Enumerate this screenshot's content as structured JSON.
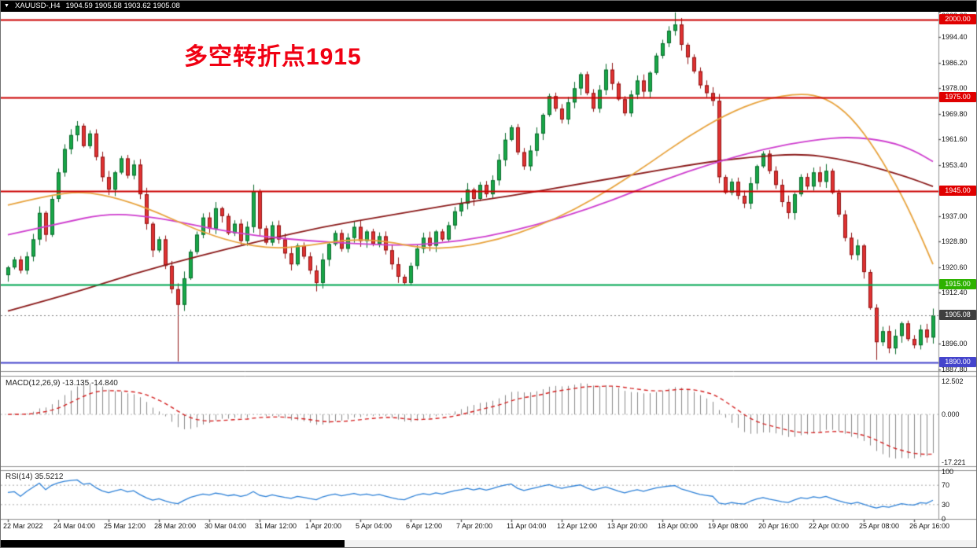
{
  "titlebar": {
    "symbol_period": "XAUUSD-,H4",
    "ohlc": "1904.59 1905.58 1903.62 1905.08",
    "bg": "#000000",
    "fg": "#ffffff"
  },
  "annotation": {
    "text": "多空转折点1915",
    "color": "#f00012"
  },
  "current_price": 1905.08,
  "hlines": [
    {
      "price": 2000.0,
      "color": "#cc0000",
      "width": 2
    },
    {
      "price": 1975.0,
      "color": "#cc0000",
      "width": 2
    },
    {
      "price": 1945.0,
      "color": "#cc0000",
      "width": 2
    },
    {
      "price": 1915.0,
      "color": "#00a651",
      "width": 2
    },
    {
      "price": 1890.0,
      "color": "#4444cc",
      "width": 2
    }
  ],
  "price_axis": {
    "ticks": [
      "2002.60",
      "1994.40",
      "1986.20",
      "1978.00",
      "1969.80",
      "1961.60",
      "1953.40",
      "1937.00",
      "1928.80",
      "1920.60",
      "1912.40",
      "1896.00",
      "1887.80"
    ],
    "badges": [
      {
        "text": "2000.00",
        "price": 2000.0,
        "bg": "#e00000"
      },
      {
        "text": "1975.00",
        "price": 1975.0,
        "bg": "#e00000"
      },
      {
        "text": "1945.00",
        "price": 1945.0,
        "bg": "#e00000"
      },
      {
        "text": "1915.00",
        "price": 1915.0,
        "bg": "#2db200"
      },
      {
        "text": "1890.00",
        "price": 1890.0,
        "bg": "#4444cc"
      }
    ],
    "current": {
      "text": "1905.08",
      "price": 1905.08,
      "bg": "#3f3f3f"
    }
  },
  "indicators": {
    "macd": {
      "label": "MACD(12,26,9)",
      "values_text": "-13.135 -14.840",
      "axis": [
        {
          "text": "12.502",
          "value": 12.502
        },
        {
          "text": "0.000",
          "value": 0.0
        },
        {
          "text": "-17.221",
          "value": -17.221
        }
      ],
      "histogram_color": "#8a8a8a",
      "signal_color": "#d42020"
    },
    "rsi": {
      "label": "RSI(14)",
      "value_text": "35.5212",
      "axis": [
        "100",
        "70",
        "30",
        "0"
      ],
      "levels": [
        70,
        30
      ],
      "line_color": "#2f82d8"
    }
  },
  "chart_data": {
    "type": "candlestick",
    "title": "XAUUSD-,H4",
    "ylim": [
      1887.8,
      2002.6
    ],
    "x_labels": [
      "22 Mar 2022",
      "24 Mar 04:00",
      "25 Mar 12:00",
      "28 Mar 20:00",
      "30 Mar 04:00",
      "31 Mar 12:00",
      "1 Apr 20:00",
      "5 Apr 04:00",
      "6 Apr 12:00",
      "7 Apr 20:00",
      "11 Apr 04:00",
      "12 Apr 12:00",
      "13 Apr 20:00",
      "18 Apr 00:00",
      "19 Apr 08:00",
      "20 Apr 16:00",
      "22 Apr 00:00",
      "25 Apr 08:00",
      "26 Apr 16:00"
    ],
    "open_first": 1918.0,
    "closes": [
      1920.5,
      1923.0,
      1919.5,
      1924.0,
      1929.5,
      1938.0,
      1931.0,
      1942.5,
      1951.0,
      1958.5,
      1963.0,
      1966.0,
      1959.5,
      1963.5,
      1956.0,
      1949.5,
      1945.5,
      1951.0,
      1955.5,
      1950.0,
      1953.5,
      1944.0,
      1934.5,
      1926.0,
      1929.5,
      1921.0,
      1913.5,
      1908.5,
      1917.0,
      1925.5,
      1931.0,
      1936.5,
      1933.0,
      1939.5,
      1937.0,
      1931.5,
      1934.5,
      1929.0,
      1933.5,
      1945.0,
      1933.0,
      1928.5,
      1934.0,
      1929.5,
      1925.0,
      1921.5,
      1927.5,
      1924.0,
      1919.5,
      1915.5,
      1923.0,
      1928.0,
      1931.5,
      1926.5,
      1930.0,
      1933.5,
      1929.0,
      1932.0,
      1928.0,
      1930.5,
      1926.0,
      1921.5,
      1917.5,
      1915.5,
      1921.0,
      1926.5,
      1930.0,
      1927.5,
      1932.0,
      1929.5,
      1934.0,
      1938.5,
      1941.0,
      1945.5,
      1942.5,
      1947.0,
      1944.0,
      1948.5,
      1955.0,
      1961.5,
      1965.5,
      1957.5,
      1953.0,
      1958.0,
      1963.5,
      1969.5,
      1975.5,
      1971.5,
      1968.0,
      1973.5,
      1978.0,
      1982.5,
      1976.5,
      1971.5,
      1977.5,
      1984.0,
      1979.5,
      1974.5,
      1970.0,
      1976.0,
      1980.5,
      1977.0,
      1983.0,
      1988.5,
      1992.5,
      1996.5,
      1998.5,
      1992.0,
      1988.0,
      1983.5,
      1979.0,
      1976.5,
      1974.0,
      1949.5,
      1944.5,
      1948.0,
      1943.5,
      1941.0,
      1947.5,
      1953.0,
      1957.0,
      1951.5,
      1947.0,
      1941.5,
      1938.0,
      1944.0,
      1949.5,
      1946.5,
      1951.0,
      1948.0,
      1951.5,
      1944.5,
      1937.5,
      1930.0,
      1924.5,
      1927.5,
      1919.0,
      1907.5,
      1896.5,
      1900.0,
      1894.5,
      1898.5,
      1902.5,
      1897.5,
      1895.5,
      1900.5,
      1898.0,
      1905.08
    ],
    "wick_overrides": {
      "11": {
        "high": 1967.5
      },
      "27": {
        "low": 1890.3
      },
      "49": {
        "low": 1912.8
      },
      "106": {
        "high": 2002.4
      },
      "138": {
        "low": 1890.8
      }
    },
    "up_color": "#18a848",
    "up_border": "#0a6a2c",
    "down_color": "#e03232",
    "down_border": "#8f1515",
    "moving_averages": [
      {
        "name": "slow-ma",
        "color": "#8b1a1a",
        "points": [
          [
            0,
            1906.5
          ],
          [
            10,
            1912.0
          ],
          [
            20,
            1918.5
          ],
          [
            30,
            1924.0
          ],
          [
            40,
            1929.0
          ],
          [
            50,
            1933.5
          ],
          [
            60,
            1937.0
          ],
          [
            70,
            1940.5
          ],
          [
            80,
            1943.5
          ],
          [
            90,
            1947.0
          ],
          [
            100,
            1950.5
          ],
          [
            110,
            1954.0
          ],
          [
            118,
            1956.0
          ],
          [
            126,
            1957.0
          ],
          [
            132,
            1955.5
          ],
          [
            138,
            1952.5
          ],
          [
            143,
            1949.5
          ],
          [
            147,
            1946.5
          ]
        ]
      },
      {
        "name": "medium-ma",
        "color": "#cf3fcf",
        "points": [
          [
            0,
            1931.0
          ],
          [
            8,
            1934.5
          ],
          [
            16,
            1938.0
          ],
          [
            24,
            1936.5
          ],
          [
            32,
            1933.0
          ],
          [
            40,
            1930.5
          ],
          [
            48,
            1929.0
          ],
          [
            56,
            1928.0
          ],
          [
            64,
            1927.5
          ],
          [
            72,
            1929.0
          ],
          [
            80,
            1932.0
          ],
          [
            88,
            1936.5
          ],
          [
            96,
            1942.0
          ],
          [
            104,
            1948.5
          ],
          [
            112,
            1954.0
          ],
          [
            120,
            1958.5
          ],
          [
            128,
            1961.5
          ],
          [
            134,
            1962.5
          ],
          [
            140,
            1961.0
          ],
          [
            144,
            1958.0
          ],
          [
            147,
            1954.5
          ]
        ]
      },
      {
        "name": "fast-ma",
        "color": "#e8a33d",
        "points": [
          [
            0,
            1940.5
          ],
          [
            6,
            1943.5
          ],
          [
            12,
            1945.0
          ],
          [
            18,
            1942.5
          ],
          [
            24,
            1938.0
          ],
          [
            30,
            1932.5
          ],
          [
            36,
            1928.5
          ],
          [
            42,
            1926.5
          ],
          [
            48,
            1927.5
          ],
          [
            54,
            1929.5
          ],
          [
            60,
            1929.0
          ],
          [
            66,
            1926.5
          ],
          [
            72,
            1927.0
          ],
          [
            78,
            1929.5
          ],
          [
            84,
            1933.5
          ],
          [
            90,
            1939.0
          ],
          [
            96,
            1946.0
          ],
          [
            102,
            1954.0
          ],
          [
            108,
            1962.5
          ],
          [
            114,
            1969.5
          ],
          [
            120,
            1974.5
          ],
          [
            126,
            1976.5
          ],
          [
            130,
            1975.0
          ],
          [
            134,
            1969.0
          ],
          [
            138,
            1958.0
          ],
          [
            142,
            1944.0
          ],
          [
            145,
            1931.0
          ],
          [
            147,
            1921.5
          ]
        ]
      }
    ]
  }
}
